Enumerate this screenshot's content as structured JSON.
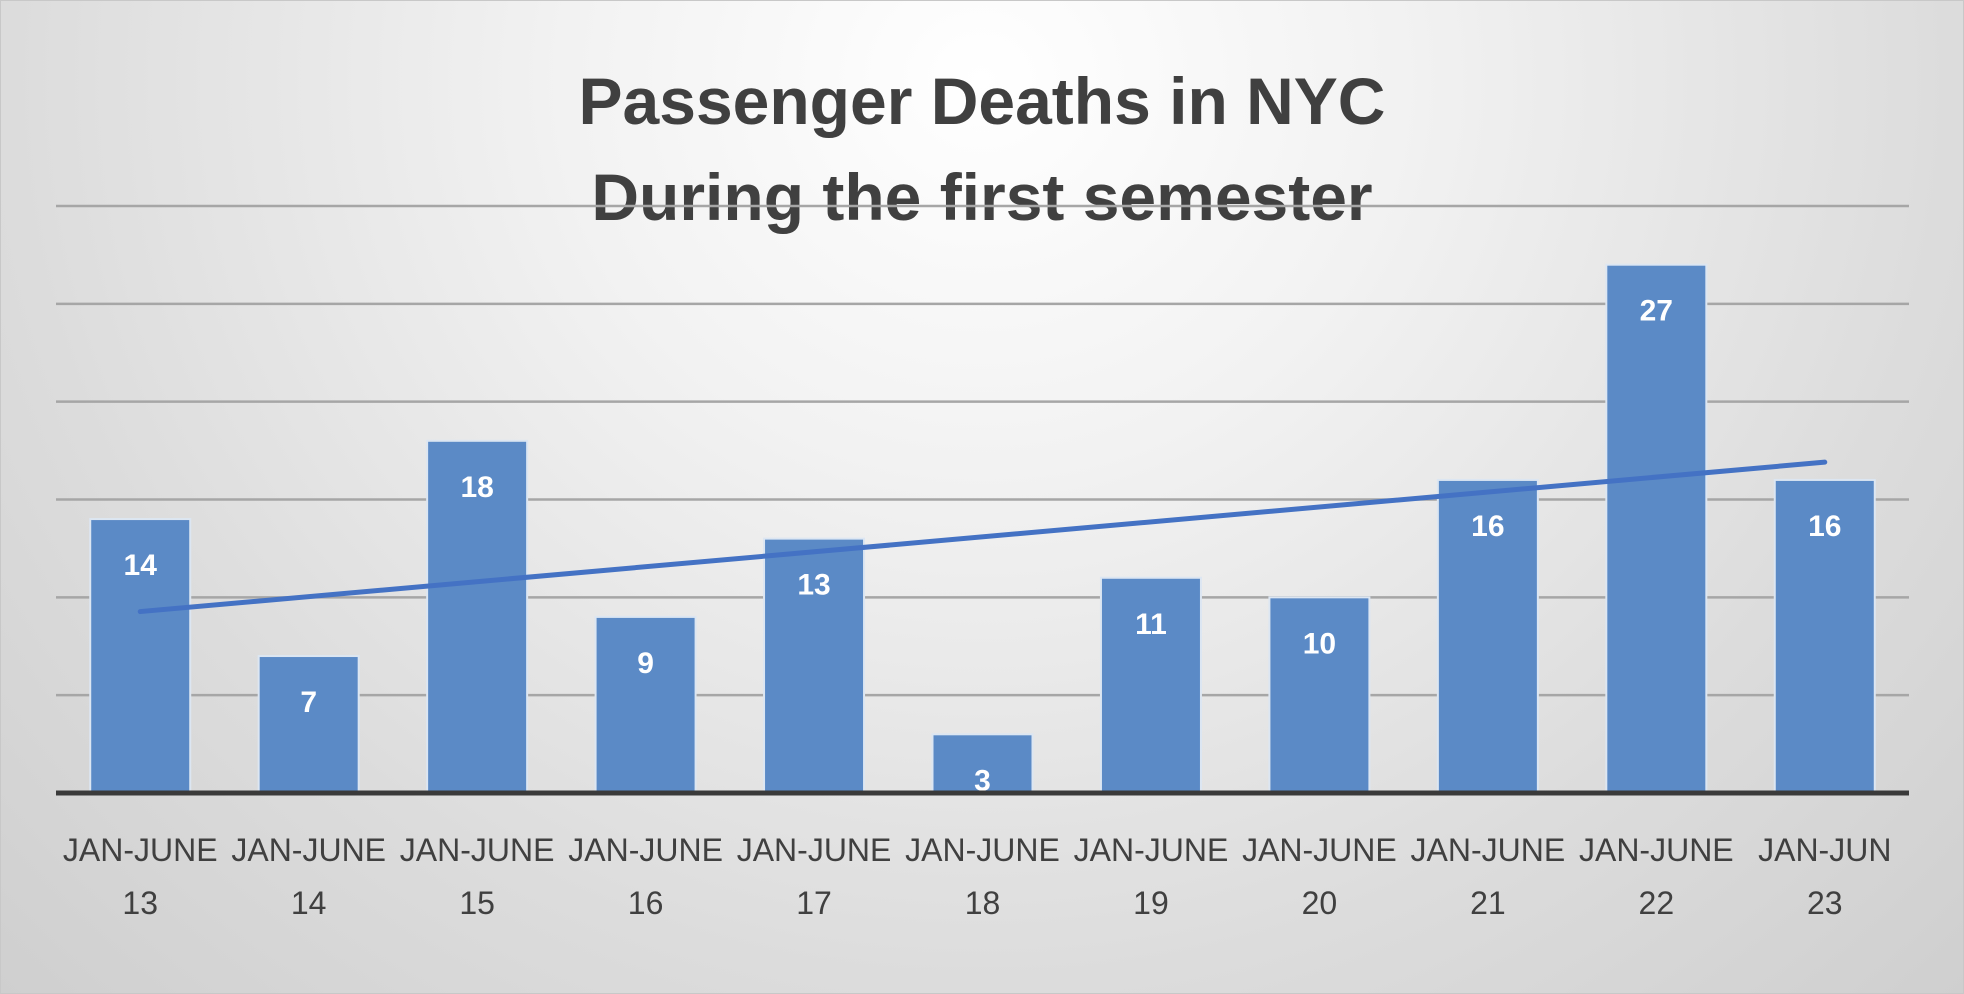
{
  "chart_data": {
    "type": "bar",
    "title_lines": [
      "Passenger Deaths in NYC",
      "During the first semester"
    ],
    "categories": [
      [
        "JAN-JUNE",
        "13"
      ],
      [
        "JAN-JUNE",
        "14"
      ],
      [
        "JAN-JUNE",
        "15"
      ],
      [
        "JAN-JUNE",
        "16"
      ],
      [
        "JAN-JUNE",
        "17"
      ],
      [
        "JAN-JUNE",
        "18"
      ],
      [
        "JAN-JUNE",
        "19"
      ],
      [
        "JAN-JUNE",
        "20"
      ],
      [
        "JAN-JUNE",
        "21"
      ],
      [
        "JAN-JUNE",
        "22"
      ],
      [
        "JAN-JUN",
        "23"
      ]
    ],
    "values": [
      14,
      7,
      18,
      9,
      13,
      3,
      11,
      10,
      16,
      27,
      16
    ],
    "ylim": [
      0,
      30
    ],
    "y_grid_step": 5,
    "grid": true,
    "y_tick_labels_shown": false,
    "data_labels": "inside-end",
    "trendline": "linear",
    "colors": {
      "bar": "#5b8ac6",
      "bar_edge": "#dce6f2",
      "trendline": "#4472c4",
      "gridline": "#a6a6a6",
      "axis": "#3a3a3a",
      "label_text": "#ffffff",
      "tick_text": "#404040",
      "title_text": "#404040"
    }
  }
}
